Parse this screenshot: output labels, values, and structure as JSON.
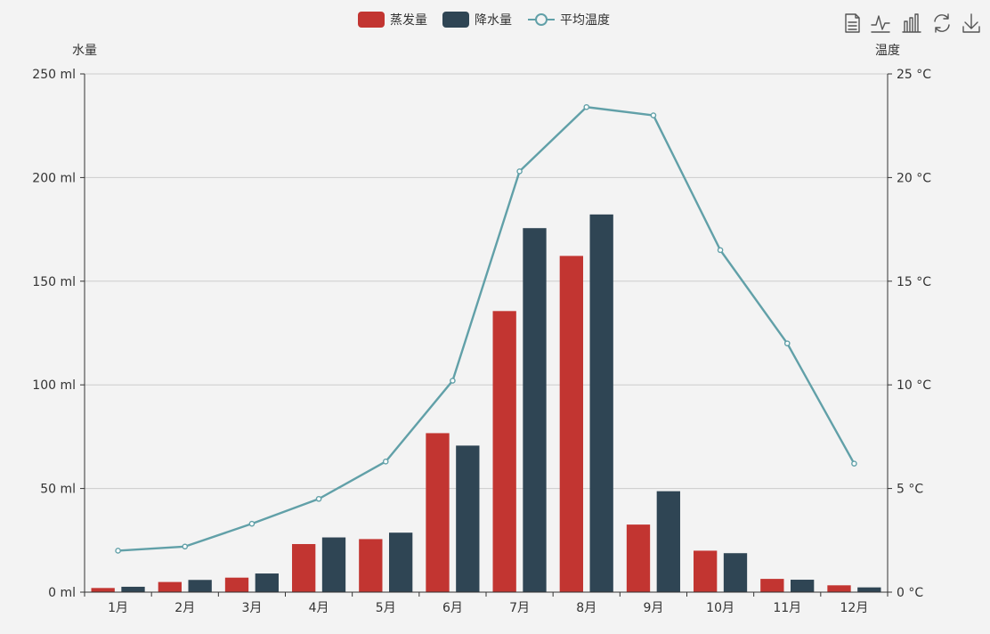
{
  "legend": [
    {
      "label": "蒸发量",
      "color": "#c23531",
      "kind": "bar"
    },
    {
      "label": "降水量",
      "color": "#2f4554",
      "kind": "bar"
    },
    {
      "label": "平均温度",
      "color": "#61a0a8",
      "kind": "line"
    }
  ],
  "toolbox": [
    {
      "icon": "data-view-icon"
    },
    {
      "icon": "line-chart-icon"
    },
    {
      "icon": "bar-chart-icon"
    },
    {
      "icon": "restore-icon"
    },
    {
      "icon": "save-image-icon"
    }
  ],
  "colors": {
    "evaporation": "#c23531",
    "precipitation": "#2f4554",
    "temperature": "#61a0a8"
  },
  "chart_data": {
    "type": "bar",
    "categories": [
      "1月",
      "2月",
      "3月",
      "4月",
      "5月",
      "6月",
      "7月",
      "8月",
      "9月",
      "10月",
      "11月",
      "12月"
    ],
    "series": [
      {
        "name": "蒸发量",
        "type": "bar",
        "axis": "left",
        "values": [
          2.0,
          4.9,
          7.0,
          23.2,
          25.6,
          76.7,
          135.6,
          162.2,
          32.6,
          20.0,
          6.4,
          3.3
        ]
      },
      {
        "name": "降水量",
        "type": "bar",
        "axis": "left",
        "values": [
          2.6,
          5.9,
          9.0,
          26.4,
          28.7,
          70.7,
          175.6,
          182.2,
          48.7,
          18.8,
          6.0,
          2.3
        ]
      },
      {
        "name": "平均温度",
        "type": "line",
        "axis": "right",
        "values": [
          2.0,
          2.2,
          3.3,
          4.5,
          6.3,
          10.2,
          20.3,
          23.4,
          23.0,
          16.5,
          12.0,
          6.2
        ]
      }
    ],
    "y_left": {
      "name": "水量",
      "min": 0,
      "max": 250,
      "interval": 50,
      "unit": "ml",
      "ticks": [
        "0 ml",
        "50 ml",
        "100 ml",
        "150 ml",
        "200 ml",
        "250 ml"
      ]
    },
    "y_right": {
      "name": "温度",
      "min": 0,
      "max": 25,
      "interval": 5,
      "unit": "°C",
      "ticks": [
        "0 °C",
        "5 °C",
        "10 °C",
        "15 °C",
        "20 °C",
        "25 °C"
      ]
    },
    "grid": true,
    "legend_position": "top-center"
  }
}
